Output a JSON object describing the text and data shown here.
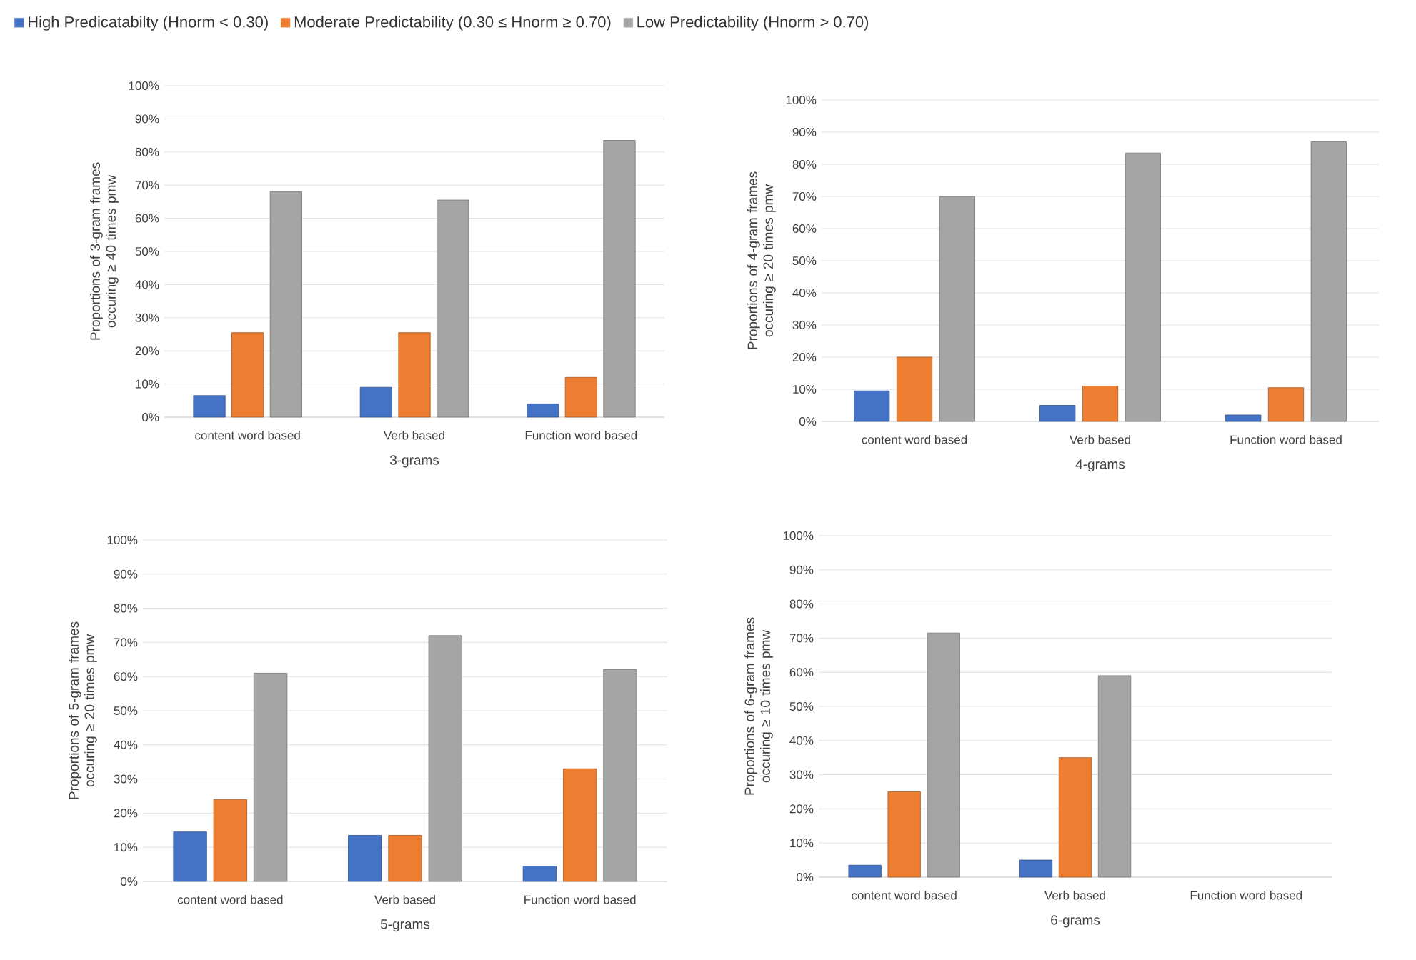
{
  "chart_data": [
    {
      "type": "bar",
      "categories": [
        "content word based",
        "Verb based",
        "Function word based"
      ],
      "xlabel": "3-grams",
      "ylabel": "Proportions of 3-gram frames  occuring ≥ 40 times pmw",
      "ylim": [
        0,
        100
      ],
      "yticks": [
        {
          "value": 0,
          "label": "0%"
        },
        {
          "value": 10,
          "label": "10%"
        },
        {
          "value": 20,
          "label": "20%"
        },
        {
          "value": 30,
          "label": "30%"
        },
        {
          "value": 40,
          "label": "40%"
        },
        {
          "value": 50,
          "label": "50%"
        },
        {
          "value": 60,
          "label": "60%"
        },
        {
          "value": 70,
          "label": "70%"
        },
        {
          "value": 80,
          "label": "80%"
        },
        {
          "value": 90,
          "label": "90%"
        },
        {
          "value": 100,
          "label": "100%"
        }
      ],
      "grid": "y",
      "legend": "top",
      "series": [
        {
          "name": "High Predicatabilty (Hnorm < 0.30)",
          "color": "#4472c4",
          "values": [
            6.5,
            9,
            4
          ]
        },
        {
          "name": "Moderate Predictability (0.30 ≤ Hnorm ≥ 0.70)",
          "color": "#ed7d31",
          "values": [
            25.5,
            25.5,
            12
          ]
        },
        {
          "name": "Low Predictability (Hnorm > 0.70)",
          "color": "#a5a5a5",
          "values": [
            68,
            65.5,
            83.5
          ]
        }
      ]
    },
    {
      "type": "bar",
      "categories": [
        "content word based",
        "Verb based",
        "Function word based"
      ],
      "xlabel": "4-grams",
      "ylabel": "Proportions of 4-gram frames  occuring ≥ 20 times pmw",
      "ylim": [
        0,
        100
      ],
      "yticks": [
        {
          "value": 0,
          "label": "0%"
        },
        {
          "value": 10,
          "label": "10%"
        },
        {
          "value": 20,
          "label": "20%"
        },
        {
          "value": 30,
          "label": "30%"
        },
        {
          "value": 40,
          "label": "40%"
        },
        {
          "value": 50,
          "label": "50%"
        },
        {
          "value": 60,
          "label": "60%"
        },
        {
          "value": 70,
          "label": "70%"
        },
        {
          "value": 80,
          "label": "80%"
        },
        {
          "value": 90,
          "label": "90%"
        },
        {
          "value": 100,
          "label": "100%"
        }
      ],
      "grid": "y",
      "series": [
        {
          "color": "#4472c4",
          "values": [
            9.5,
            5,
            2
          ]
        },
        {
          "color": "#ed7d31",
          "values": [
            20,
            11,
            10.5
          ]
        },
        {
          "color": "#a5a5a5",
          "values": [
            70,
            83.5,
            87
          ]
        }
      ]
    },
    {
      "type": "bar",
      "categories": [
        "content word based",
        "Verb based",
        "Function word based"
      ],
      "xlabel": "5-grams",
      "ylabel": "Proportions of 5-gram frames  occuring ≥ 20 times pmw",
      "ylim": [
        0,
        100
      ],
      "yticks": [
        {
          "value": 0,
          "label": "0%"
        },
        {
          "value": 10,
          "label": "10%"
        },
        {
          "value": 20,
          "label": "20%"
        },
        {
          "value": 30,
          "label": "30%"
        },
        {
          "value": 40,
          "label": "40%"
        },
        {
          "value": 50,
          "label": "50%"
        },
        {
          "value": 60,
          "label": "60%"
        },
        {
          "value": 70,
          "label": "70%"
        },
        {
          "value": 80,
          "label": "80%"
        },
        {
          "value": 90,
          "label": "90%"
        },
        {
          "value": 100,
          "label": "100%"
        }
      ],
      "grid": "y",
      "series": [
        {
          "color": "#4472c4",
          "values": [
            14.5,
            13.5,
            4.5
          ]
        },
        {
          "color": "#ed7d31",
          "values": [
            24,
            13.5,
            33
          ]
        },
        {
          "color": "#a5a5a5",
          "values": [
            61,
            72,
            62
          ]
        }
      ]
    },
    {
      "type": "bar",
      "categories": [
        "content word based",
        "Verb based",
        "Function word based"
      ],
      "xlabel": "6-grams",
      "ylabel": "Proportions of 6-gram frames  occuring ≥ 10 times pmw",
      "ylim": [
        0,
        100
      ],
      "yticks": [
        {
          "value": 0,
          "label": "0%"
        },
        {
          "value": 10,
          "label": "10%"
        },
        {
          "value": 20,
          "label": "20%"
        },
        {
          "value": 30,
          "label": "30%"
        },
        {
          "value": 40,
          "label": "40%"
        },
        {
          "value": 50,
          "label": "50%"
        },
        {
          "value": 60,
          "label": "60%"
        },
        {
          "value": 70,
          "label": "70%"
        },
        {
          "value": 80,
          "label": "80%"
        },
        {
          "value": 90,
          "label": "90%"
        },
        {
          "value": 100,
          "label": "100%"
        }
      ],
      "grid": "y",
      "series": [
        {
          "color": "#4472c4",
          "values": [
            3.5,
            5,
            null
          ]
        },
        {
          "color": "#ed7d31",
          "values": [
            25,
            35,
            null
          ]
        },
        {
          "color": "#a5a5a5",
          "values": [
            71.5,
            59,
            null
          ]
        }
      ]
    }
  ]
}
